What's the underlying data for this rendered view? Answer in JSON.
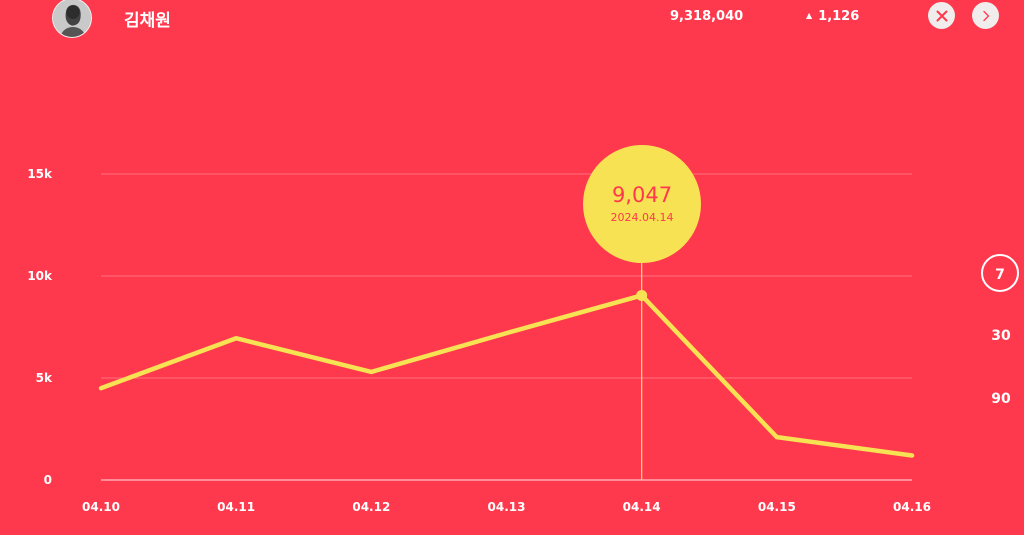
{
  "header": {
    "name": "김채원",
    "total": "9,318,040",
    "change": "1,126",
    "change_icon": "triangle-up-icon"
  },
  "tooltip": {
    "value": "9,047",
    "date": "2024.04.14"
  },
  "ranges": [
    "7",
    "30",
    "90"
  ],
  "active_range": "7",
  "colors": {
    "background": "#ff394d",
    "line": "#f7e253",
    "bubble": "#f7e253"
  },
  "chart_data": {
    "type": "line",
    "categories": [
      "04.10",
      "04.11",
      "04.12",
      "04.13",
      "04.14",
      "04.15",
      "04.16"
    ],
    "values": [
      4500,
      6950,
      5300,
      7200,
      9047,
      2100,
      1200
    ],
    "y_ticks": [
      "0",
      "5k",
      "10k",
      "15k"
    ],
    "ylim": [
      0,
      15000
    ],
    "highlight_index": 4,
    "grid": true,
    "legend": "none"
  }
}
